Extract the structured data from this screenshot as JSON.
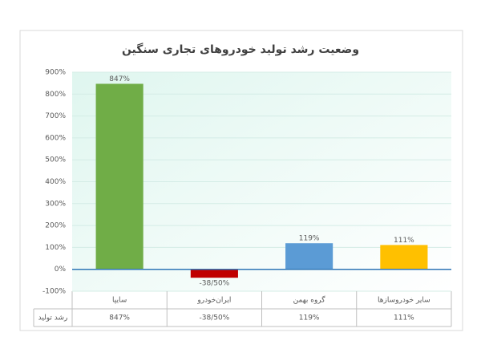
{
  "chart_data": {
    "type": "bar",
    "title": "وضعیت رشد تولید خودروهای تجاری سنگین",
    "categories": [
      "سایپا",
      "ایران‌خودرو",
      "گروه بهمن",
      "سایر خودروسازها"
    ],
    "series_name": "رشد تولید",
    "values": [
      847,
      -38.5,
      119,
      111
    ],
    "value_labels": [
      "847%",
      "-38/50%",
      "119%",
      "111%"
    ],
    "colors": [
      "#70ad47",
      "#c00000",
      "#5b9bd5",
      "#ffc000"
    ],
    "ylim": [
      -100,
      900
    ],
    "yticks": [
      {
        "value": -100,
        "label": "-100%"
      },
      {
        "value": 0,
        "label": "0%"
      },
      {
        "value": 100,
        "label": "100%"
      },
      {
        "value": 200,
        "label": "200%"
      },
      {
        "value": 300,
        "label": "300%"
      },
      {
        "value": 400,
        "label": "400%"
      },
      {
        "value": 500,
        "label": "500%"
      },
      {
        "value": 600,
        "label": "600%"
      },
      {
        "value": 700,
        "label": "700%"
      },
      {
        "value": 800,
        "label": "800%"
      },
      {
        "value": 900,
        "label": "900%"
      }
    ],
    "grid": true
  }
}
